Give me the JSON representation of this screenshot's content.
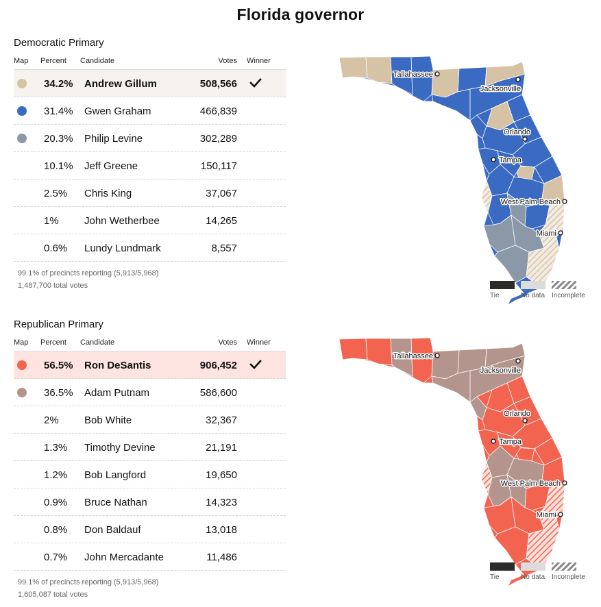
{
  "page_title": "Florida governor",
  "columns": {
    "map": "Map",
    "percent": "Percent",
    "candidate": "Candidate",
    "votes": "Votes",
    "winner": "Winner"
  },
  "legend": {
    "tie": "Tie",
    "no_data": "No data",
    "incomplete": "Incomplete"
  },
  "cities": [
    "Tallahassee",
    "Jacksonville",
    "Orlando",
    "Tampa",
    "West Palm Beach",
    "Miami"
  ],
  "races": [
    {
      "title": "Democratic Primary",
      "candidates": [
        {
          "percent": "34.2%",
          "name": "Andrew Gillum",
          "votes": "508,566",
          "winner": true,
          "color": "#d6c3a5"
        },
        {
          "percent": "31.4%",
          "name": "Gwen Graham",
          "votes": "466,839",
          "winner": false,
          "color": "#3a6ac2"
        },
        {
          "percent": "20.3%",
          "name": "Philip Levine",
          "votes": "302,289",
          "winner": false,
          "color": "#8a98a8"
        },
        {
          "percent": "10.1%",
          "name": "Jeff Greene",
          "votes": "150,117",
          "winner": false,
          "color": ""
        },
        {
          "percent": "2.5%",
          "name": "Chris King",
          "votes": "37,067",
          "winner": false,
          "color": ""
        },
        {
          "percent": "1%",
          "name": "John Wetherbee",
          "votes": "14,265",
          "winner": false,
          "color": ""
        },
        {
          "percent": "0.6%",
          "name": "Lundy Lundmark",
          "votes": "8,557",
          "winner": false,
          "color": ""
        }
      ],
      "footnote_reporting": "99.1% of precincts reporting (5,913/5,968)",
      "footnote_total": "1,487,700 total votes",
      "map_base_color": "#3a6ac2",
      "winner_row_bg": "#f6f3ee"
    },
    {
      "title": "Republican Primary",
      "candidates": [
        {
          "percent": "56.5%",
          "name": "Ron DeSantis",
          "votes": "906,452",
          "winner": true,
          "color": "#f26450"
        },
        {
          "percent": "36.5%",
          "name": "Adam Putnam",
          "votes": "586,600",
          "winner": false,
          "color": "#b3958e"
        },
        {
          "percent": "2%",
          "name": "Bob White",
          "votes": "32,367",
          "winner": false,
          "color": ""
        },
        {
          "percent": "1.3%",
          "name": "Timothy Devine",
          "votes": "21,191",
          "winner": false,
          "color": ""
        },
        {
          "percent": "1.2%",
          "name": "Bob Langford",
          "votes": "19,650",
          "winner": false,
          "color": ""
        },
        {
          "percent": "0.9%",
          "name": "Bruce Nathan",
          "votes": "14,323",
          "winner": false,
          "color": ""
        },
        {
          "percent": "0.8%",
          "name": "Don Baldauf",
          "votes": "13,018",
          "winner": false,
          "color": ""
        },
        {
          "percent": "0.7%",
          "name": "John Mercadante",
          "votes": "11,486",
          "winner": false,
          "color": ""
        }
      ],
      "footnote_reporting": "99.1% of precincts reporting (5,913/5,968)",
      "footnote_total": "1,605,087 total votes",
      "map_base_color": "#f26450",
      "winner_row_bg": "#fde4e0"
    }
  ]
}
